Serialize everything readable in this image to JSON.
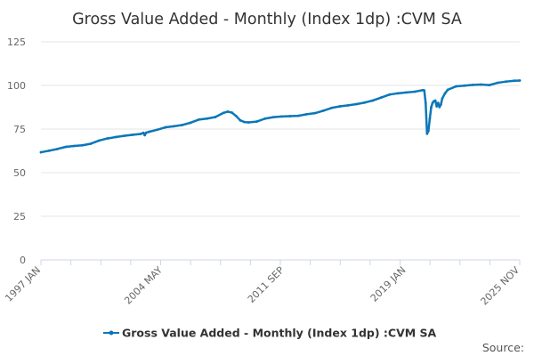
{
  "chart_data": {
    "type": "line",
    "title": "Gross Value Added - Monthly (Index 1dp) :CVM SA",
    "xlabel": "",
    "ylabel": "",
    "x_start": "1997 JAN",
    "x_end": "2025 NOV",
    "xticks": [
      "1997 JAN",
      "2004 MAY",
      "2011 SEP",
      "2019 JAN",
      "2025 NOV"
    ],
    "yticks": [
      0,
      25,
      50,
      75,
      100,
      125
    ],
    "ylim": [
      0,
      125
    ],
    "grid": true,
    "legend_position": "bottom",
    "color": "#0a77b8",
    "series": [
      {
        "name": "Gross Value Added - Monthly (Index 1dp) :CVM SA",
        "points": [
          [
            "1997 JAN",
            61.7
          ],
          [
            "1997 JUL",
            62.6
          ],
          [
            "1998 JAN",
            63.6
          ],
          [
            "1998 JUL",
            64.8
          ],
          [
            "1999 JAN",
            65.3
          ],
          [
            "1999 JUL",
            65.7
          ],
          [
            "2000 JAN",
            66.6
          ],
          [
            "2000 JUL",
            68.4
          ],
          [
            "2001 JAN",
            69.6
          ],
          [
            "2001 JUL",
            70.4
          ],
          [
            "2002 JAN",
            71.1
          ],
          [
            "2002 JUL",
            71.7
          ],
          [
            "2003 JAN",
            72.2
          ],
          [
            "2003 MAR",
            72.8
          ],
          [
            "2003 APR",
            71.5
          ],
          [
            "2003 MAY",
            72.9
          ],
          [
            "2003 JUL",
            73.4
          ],
          [
            "2004 JAN",
            74.6
          ],
          [
            "2004 JUL",
            76.0
          ],
          [
            "2005 JAN",
            76.6
          ],
          [
            "2005 JUL",
            77.3
          ],
          [
            "2006 JAN",
            78.6
          ],
          [
            "2006 JUL",
            80.4
          ],
          [
            "2007 JAN",
            81.0
          ],
          [
            "2007 JUL",
            81.9
          ],
          [
            "2008 JAN",
            84.3
          ],
          [
            "2008 APR",
            85.0
          ],
          [
            "2008 JUL",
            84.4
          ],
          [
            "2008 OCT",
            82.5
          ],
          [
            "2009 JAN",
            80.0
          ],
          [
            "2009 APR",
            79.0
          ],
          [
            "2009 JUL",
            78.8
          ],
          [
            "2010 JAN",
            79.3
          ],
          [
            "2010 JUL",
            81.0
          ],
          [
            "2011 JAN",
            81.8
          ],
          [
            "2011 JUL",
            82.2
          ],
          [
            "2012 JAN",
            82.4
          ],
          [
            "2012 JUL",
            82.6
          ],
          [
            "2013 JAN",
            83.5
          ],
          [
            "2013 JUL",
            84.1
          ],
          [
            "2014 JAN",
            85.5
          ],
          [
            "2014 JUL",
            87.1
          ],
          [
            "2015 JAN",
            88.0
          ],
          [
            "2015 JUL",
            88.6
          ],
          [
            "2016 JAN",
            89.3
          ],
          [
            "2016 JUL",
            90.2
          ],
          [
            "2017 JAN",
            91.4
          ],
          [
            "2017 JUL",
            93.1
          ],
          [
            "2018 JAN",
            94.8
          ],
          [
            "2018 JUL",
            95.5
          ],
          [
            "2019 JAN",
            96.0
          ],
          [
            "2019 JUL",
            96.4
          ],
          [
            "2020 JAN",
            97.3
          ],
          [
            "2020 FEB",
            97.1
          ],
          [
            "2020 MAR",
            90.0
          ],
          [
            "2020 APR",
            72.3
          ],
          [
            "2020 MAY",
            74.0
          ],
          [
            "2020 JUN",
            81.0
          ],
          [
            "2020 JUL",
            87.5
          ],
          [
            "2020 AUG",
            90.0
          ],
          [
            "2020 SEP",
            91.0
          ],
          [
            "2020 OCT",
            91.3
          ],
          [
            "2020 NOV",
            88.0
          ],
          [
            "2020 DEC",
            90.0
          ],
          [
            "2021 JAN",
            87.6
          ],
          [
            "2021 FEB",
            89.0
          ],
          [
            "2021 MAR",
            92.5
          ],
          [
            "2021 MAY",
            95.5
          ],
          [
            "2021 JUL",
            97.5
          ],
          [
            "2022 JAN",
            99.5
          ],
          [
            "2022 JUL",
            99.9
          ],
          [
            "2023 JAN",
            100.3
          ],
          [
            "2023 JUL",
            100.5
          ],
          [
            "2024 JAN",
            100.2
          ],
          [
            "2024 JUL",
            101.5
          ],
          [
            "2025 JAN",
            102.2
          ],
          [
            "2025 JUL",
            102.7
          ],
          [
            "2025 NOV",
            102.8
          ]
        ]
      }
    ],
    "source_label": "Source:"
  }
}
